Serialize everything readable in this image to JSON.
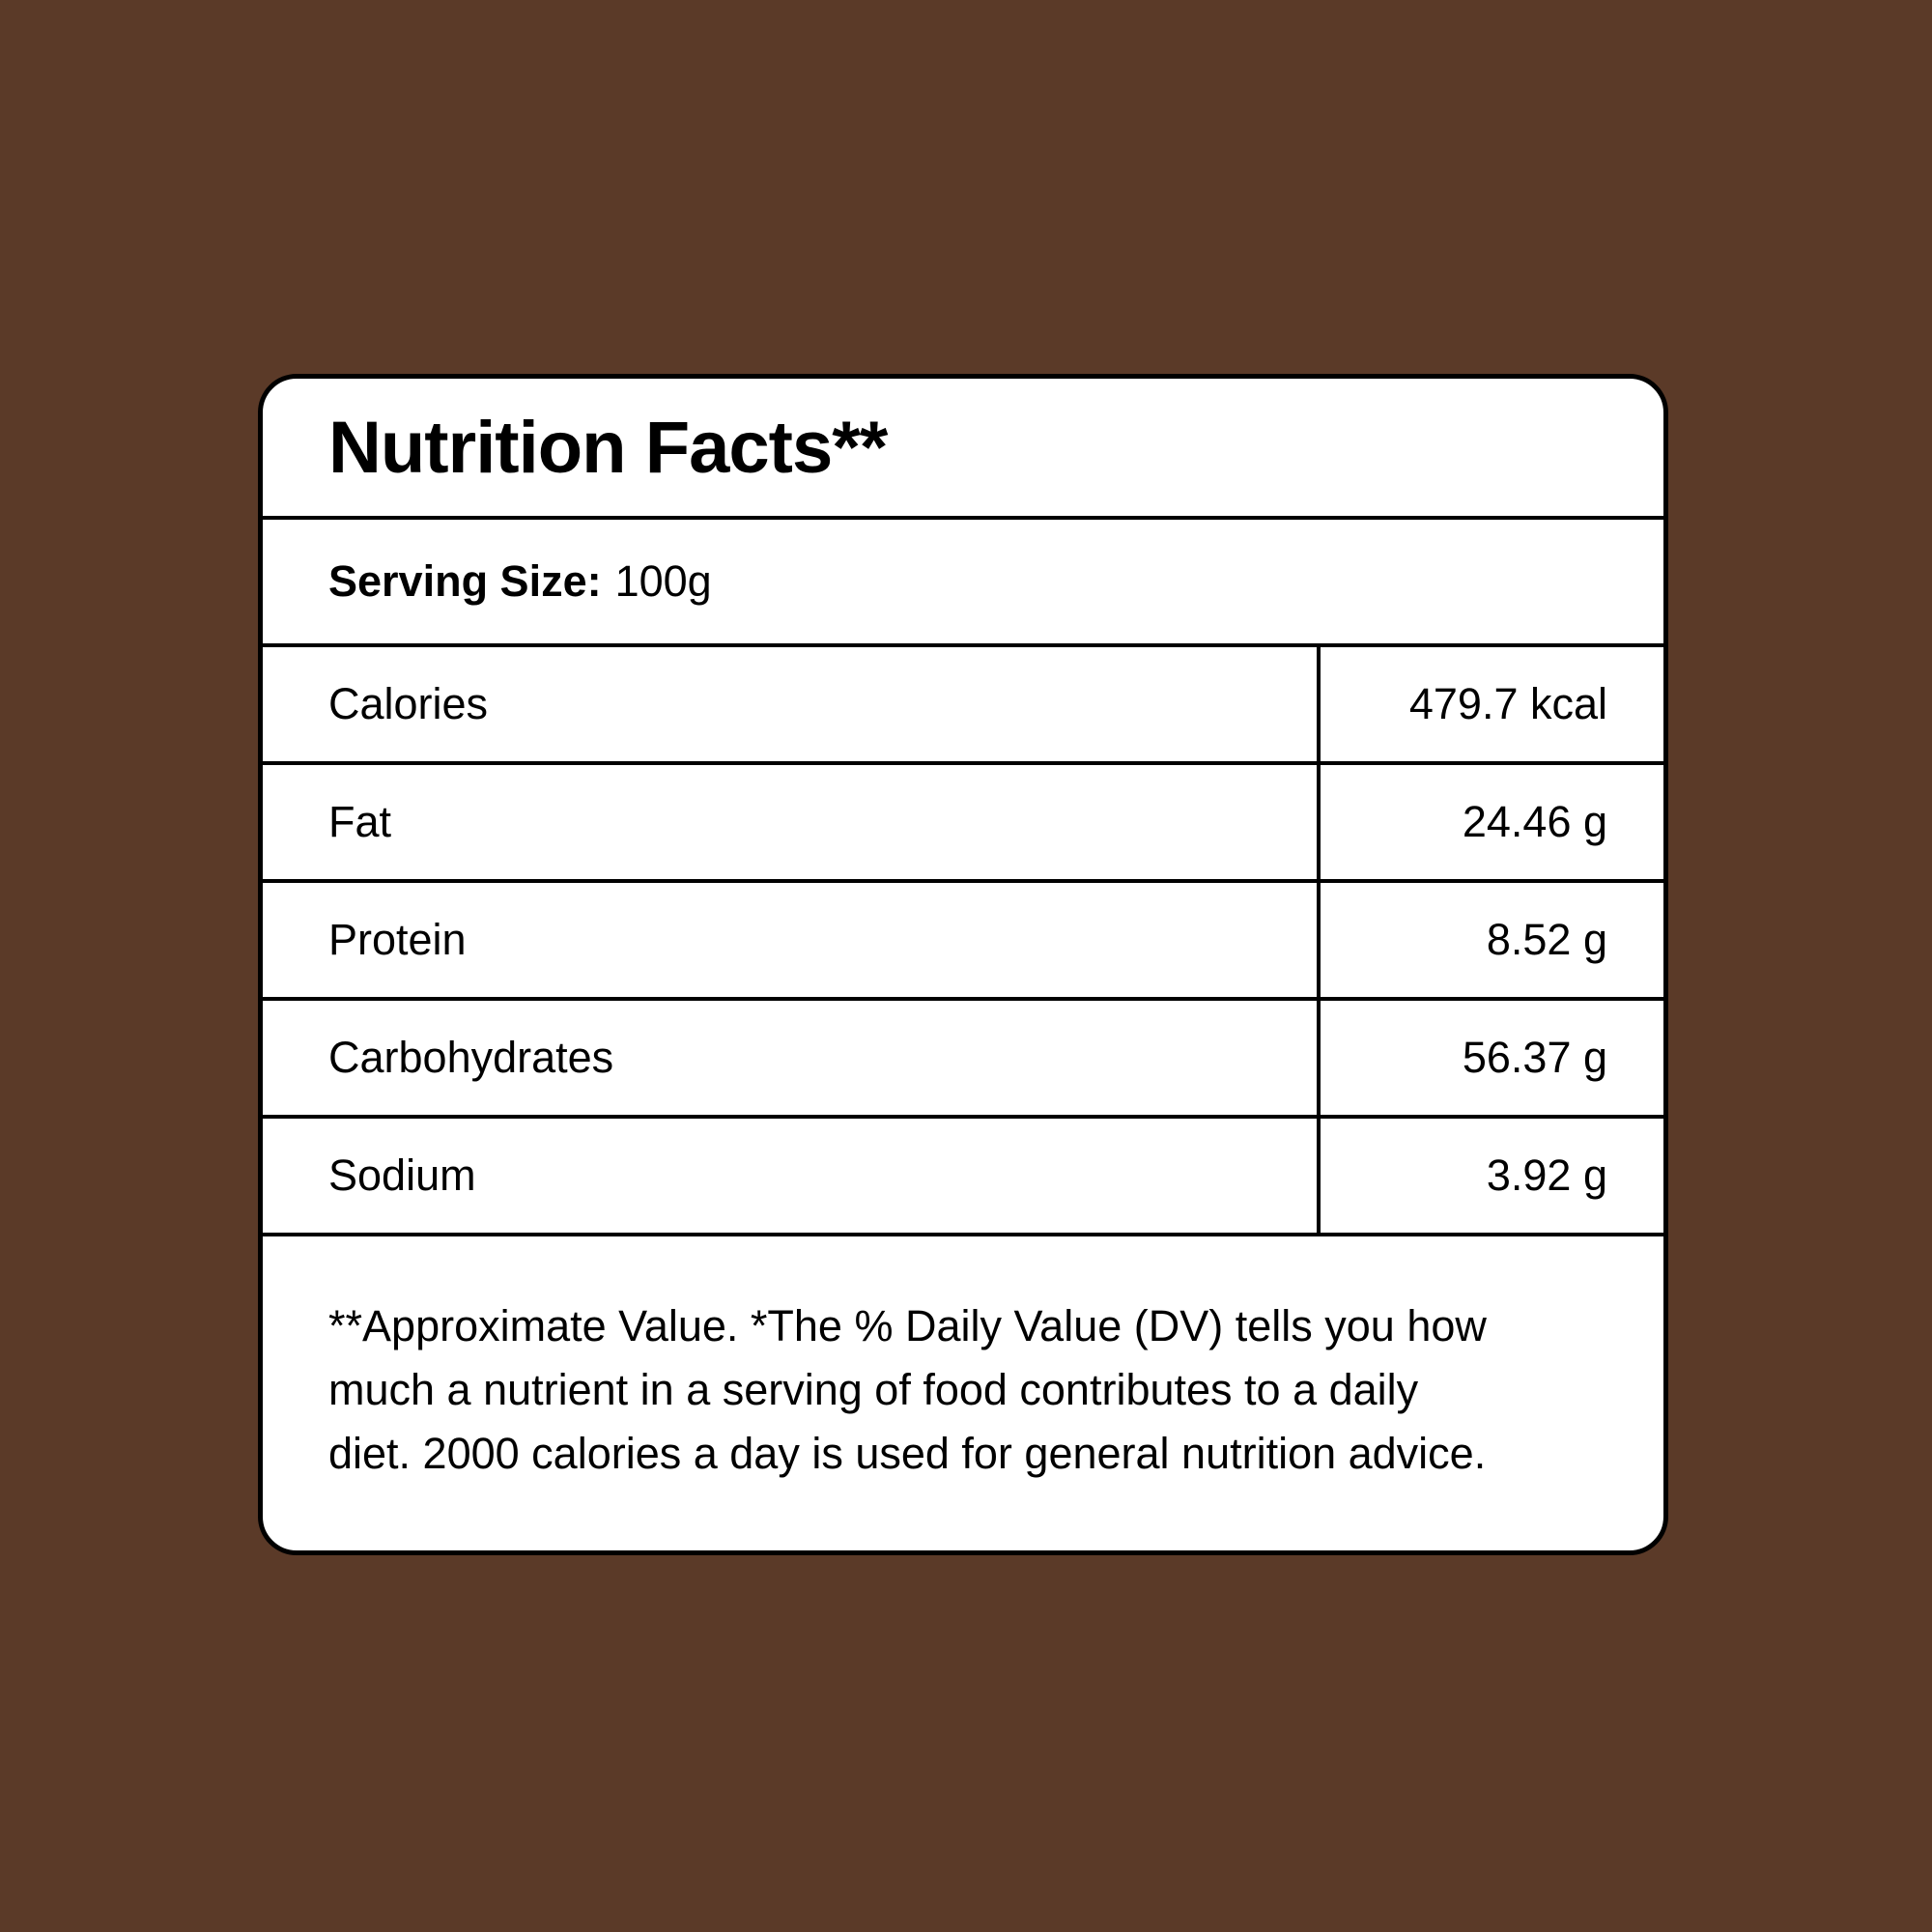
{
  "page": {
    "background_color": "#5B3A28",
    "card_background": "#FFFFFF",
    "line_color": "#000000",
    "text_color": "#000000"
  },
  "card": {
    "title": "Nutrition Facts**",
    "serving_label": "Serving Size:",
    "serving_value": "100g",
    "rows": [
      {
        "label": "Calories",
        "value": "479.7 kcal"
      },
      {
        "label": "Fat",
        "value": "24.46 g"
      },
      {
        "label": "Protein",
        "value": "8.52 g"
      },
      {
        "label": "Carbohydrates",
        "value": "56.37 g"
      },
      {
        "label": "Sodium",
        "value": "3.92 g"
      }
    ],
    "footnote_lines": [
      "**Approximate Value. *The % Daily Value (DV) tells you how",
      "much a nutrient in a serving of food contributes to a daily",
      "diet. 2000 calories a day is used for general nutrition advice."
    ]
  }
}
